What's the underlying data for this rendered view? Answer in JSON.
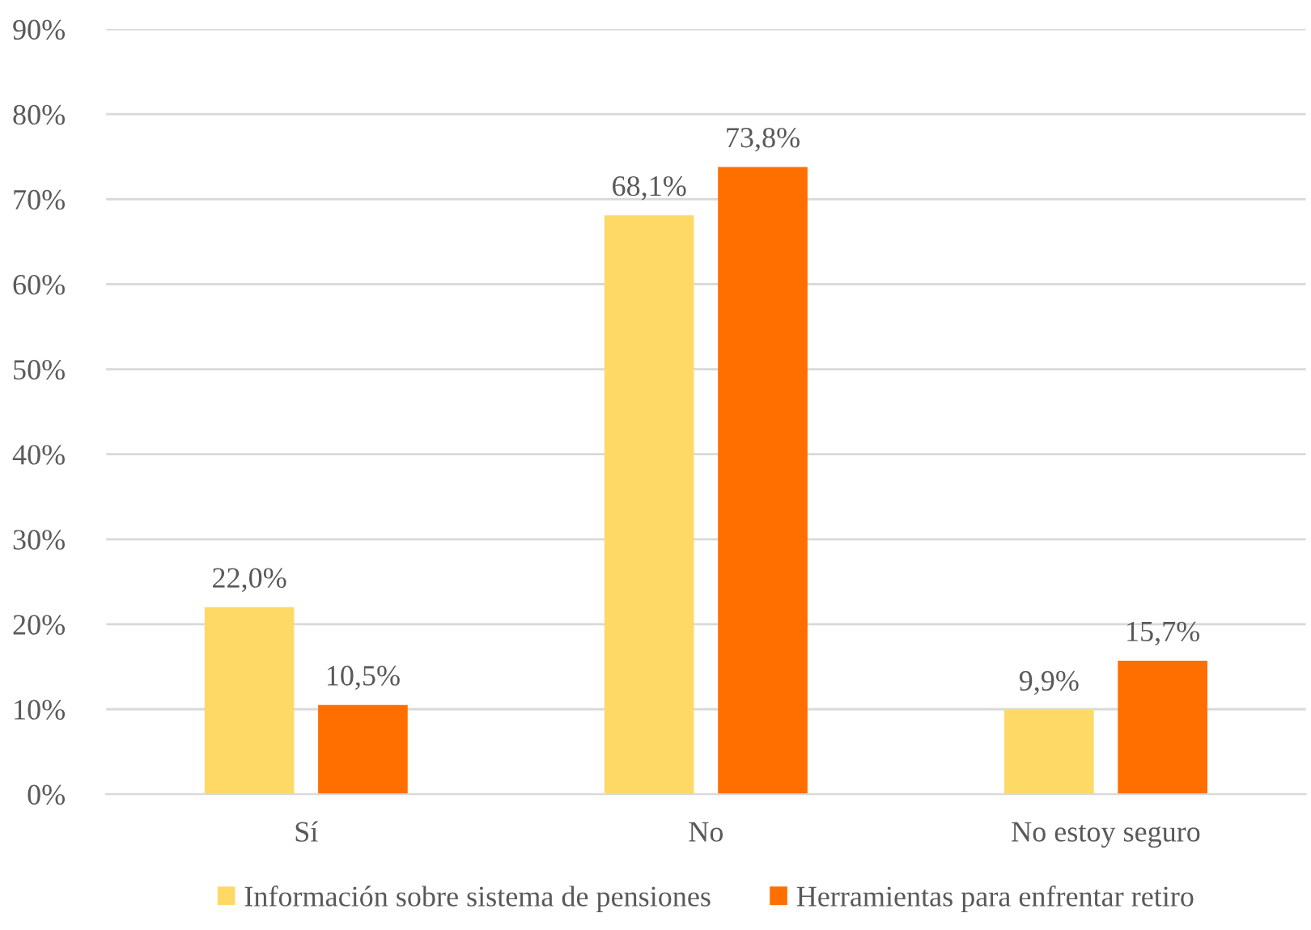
{
  "chart_data": {
    "type": "bar",
    "categories": [
      "Sí",
      "No",
      "No estoy seguro"
    ],
    "series": [
      {
        "name": "Información sobre sistema de pensiones",
        "color": "#ffd966",
        "values": [
          22.0,
          68.1,
          9.9
        ],
        "value_labels": [
          "22,0%",
          "68,1%",
          "9,9%"
        ]
      },
      {
        "name": "Herramientas para enfrentar retiro",
        "color": "#ff6f00",
        "values": [
          10.5,
          73.8,
          15.7
        ],
        "value_labels": [
          "10,5%",
          "73,8%",
          "15,7%"
        ]
      }
    ],
    "ylim": [
      0,
      90
    ],
    "yticks": [
      {
        "value": 0,
        "label": "0%"
      },
      {
        "value": 10,
        "label": "10%"
      },
      {
        "value": 20,
        "label": "20%"
      },
      {
        "value": 30,
        "label": "30%"
      },
      {
        "value": 40,
        "label": "40%"
      },
      {
        "value": 50,
        "label": "50%"
      },
      {
        "value": 60,
        "label": "60%"
      },
      {
        "value": 70,
        "label": "70%"
      },
      {
        "value": 80,
        "label": "80%"
      },
      {
        "value": 90,
        "label": "90%"
      }
    ],
    "grid": "y",
    "legend": "bottom"
  }
}
